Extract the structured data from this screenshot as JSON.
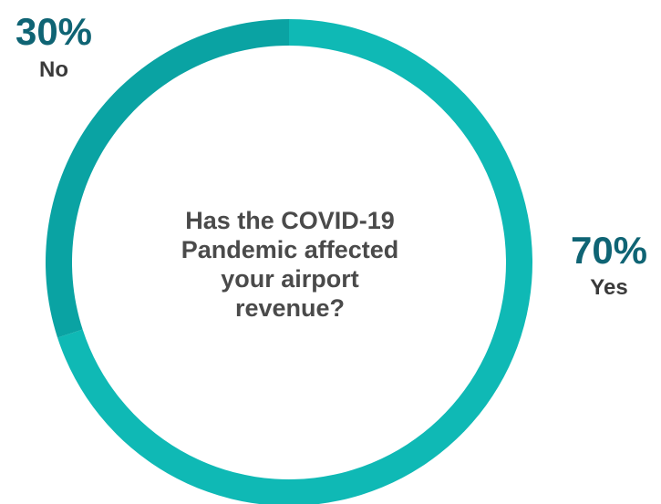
{
  "chart_data": {
    "type": "pie",
    "style": "donut",
    "center_text": [
      "Has the COVID-19",
      "Pandemic affected",
      "your airport",
      "revenue?"
    ],
    "slices": [
      {
        "name": "Yes",
        "value": 70,
        "value_label": "70%",
        "color": "#0fb9b5"
      },
      {
        "name": "No",
        "value": 30,
        "value_label": "30%",
        "color": "#0aa3a3"
      }
    ],
    "label_color": "#0f6474"
  }
}
